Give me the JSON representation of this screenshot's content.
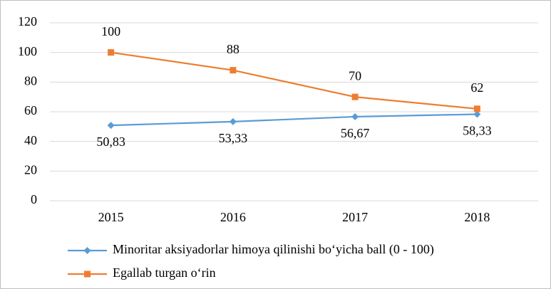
{
  "chart_data": {
    "type": "line",
    "categories": [
      "2015",
      "2016",
      "2017",
      "2018"
    ],
    "series": [
      {
        "name": "Minoritar aksiyadorlar himoya qilinishi bo‘yicha ball (0 - 100)",
        "color": "#5b9bd5",
        "marker": "diamond",
        "values": [
          50.83,
          53.33,
          56.67,
          58.33
        ],
        "value_labels": [
          "50,83",
          "53,33",
          "56,67",
          "58,33"
        ]
      },
      {
        "name": "Egallab turgan o‘rin",
        "color": "#ed7d31",
        "marker": "square",
        "values": [
          100,
          88,
          70,
          62
        ]
      }
    ],
    "ylim": [
      0,
      120
    ],
    "yticks": [
      0,
      20,
      40,
      60,
      80,
      100,
      120
    ],
    "grid": true,
    "legend": "bottom"
  }
}
